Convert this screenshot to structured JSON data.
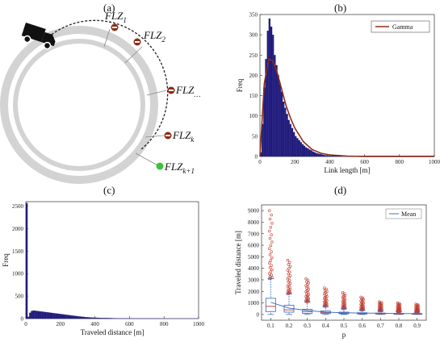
{
  "panels": {
    "a": {
      "label": "(a)",
      "zones": [
        {
          "base": "FLZ",
          "sub": "1",
          "kind": "stop"
        },
        {
          "base": "FLZ",
          "sub": "2",
          "kind": "stop"
        },
        {
          "base": "FLZ",
          "sub": "…",
          "kind": "stop"
        },
        {
          "base": "FLZ",
          "sub": "k",
          "kind": "stop"
        },
        {
          "base": "FLZ",
          "sub": "k+1",
          "kind": "go"
        }
      ],
      "vehicle_icon": "truck-icon",
      "stop_icon": "no-entry-icon",
      "go_icon": "green-go-icon"
    },
    "b": {
      "label": "(b)",
      "legend": "Gamma"
    },
    "c": {
      "label": "(c)"
    },
    "d": {
      "label": "(d)",
      "legend": "Mean"
    }
  },
  "colors": {
    "bars": "#1f1a7a",
    "gamma": "#8b2e16",
    "outlier": "#c0392b",
    "box": "#4472c4",
    "ring": "#d3d3d3"
  },
  "chart_data": [
    {
      "id": "b",
      "type": "bar",
      "xlabel": "Link length [m]",
      "ylabel": "Freq",
      "xlim": [
        0,
        1000
      ],
      "ylim": [
        0,
        350
      ],
      "xticks": [
        0,
        200,
        400,
        600,
        800,
        1000
      ],
      "yticks": [
        0,
        50,
        100,
        150,
        200,
        250,
        300,
        350
      ],
      "bin_width": 10,
      "values": [
        10,
        80,
        170,
        240,
        310,
        340,
        320,
        300,
        250,
        225,
        200,
        180,
        160,
        135,
        120,
        105,
        90,
        80,
        70,
        60,
        50,
        45,
        40,
        35,
        30,
        26,
        22,
        20,
        17,
        15,
        12,
        10,
        8,
        7,
        6,
        5,
        4,
        3,
        3,
        2
      ],
      "series": [
        {
          "name": "Gamma",
          "type": "line",
          "x": [
            0,
            25,
            50,
            75,
            100,
            125,
            150,
            175,
            200,
            250,
            300,
            350,
            400,
            500,
            600,
            800,
            1000
          ],
          "y": [
            0,
            180,
            240,
            235,
            205,
            165,
            125,
            95,
            70,
            36,
            17,
            8,
            4,
            1,
            0,
            0,
            0
          ]
        }
      ]
    },
    {
      "id": "c",
      "type": "bar",
      "xlabel": "Traveled distance [m]",
      "ylabel": "Freq",
      "xlim": [
        0,
        1000
      ],
      "ylim": [
        0,
        2600
      ],
      "xticks": [
        0,
        200,
        400,
        600,
        800,
        1000
      ],
      "yticks": [
        0,
        500,
        1000,
        1500,
        2000,
        2500
      ],
      "bin_width": 10,
      "values": [
        2570,
        40,
        130,
        170,
        180,
        175,
        170,
        165,
        160,
        155,
        150,
        145,
        140,
        135,
        130,
        125,
        120,
        115,
        110,
        105,
        100,
        95,
        90,
        85,
        80,
        75,
        70,
        65,
        60,
        55,
        50,
        46,
        42,
        38,
        34,
        30,
        28,
        26,
        24,
        22,
        20,
        18,
        17,
        16,
        15,
        14,
        13,
        12,
        11,
        10,
        9,
        8,
        8,
        7,
        7,
        6,
        6,
        5,
        5,
        5,
        4,
        4,
        4,
        4,
        3,
        3,
        3,
        3,
        3,
        2,
        2,
        2,
        2,
        2,
        2,
        2,
        2,
        1,
        1,
        1,
        1,
        1,
        1,
        1,
        1,
        1,
        1,
        1,
        1,
        1,
        1,
        1,
        1,
        1,
        1,
        1,
        1,
        1,
        1,
        1
      ]
    },
    {
      "id": "d",
      "type": "box",
      "xlabel": "p",
      "ylabel": "Traveled distance [m]",
      "ylim": [
        -500,
        9500
      ],
      "yticks": [
        0,
        1000,
        2000,
        3000,
        4000,
        5000,
        6000,
        7000,
        8000,
        9000
      ],
      "categories": [
        "0.1",
        "0.2",
        "0.3",
        "0.4",
        "0.5",
        "0.6",
        "0.7",
        "0.8",
        "0.9"
      ],
      "q1": [
        250,
        200,
        100,
        80,
        60,
        40,
        30,
        20,
        20
      ],
      "median": [
        700,
        400,
        250,
        150,
        120,
        80,
        60,
        50,
        40
      ],
      "q3": [
        1400,
        800,
        450,
        300,
        200,
        150,
        120,
        100,
        80
      ],
      "whisk_low": [
        0,
        0,
        0,
        0,
        0,
        0,
        0,
        0,
        0
      ],
      "whisk_high": [
        3100,
        1800,
        1100,
        700,
        500,
        380,
        300,
        240,
        200
      ],
      "outlier_max": [
        9000,
        4700,
        3100,
        2300,
        1900,
        1500,
        1100,
        1000,
        900
      ],
      "mean": [
        1050,
        550,
        350,
        200,
        150,
        120,
        100,
        80,
        70
      ]
    }
  ]
}
